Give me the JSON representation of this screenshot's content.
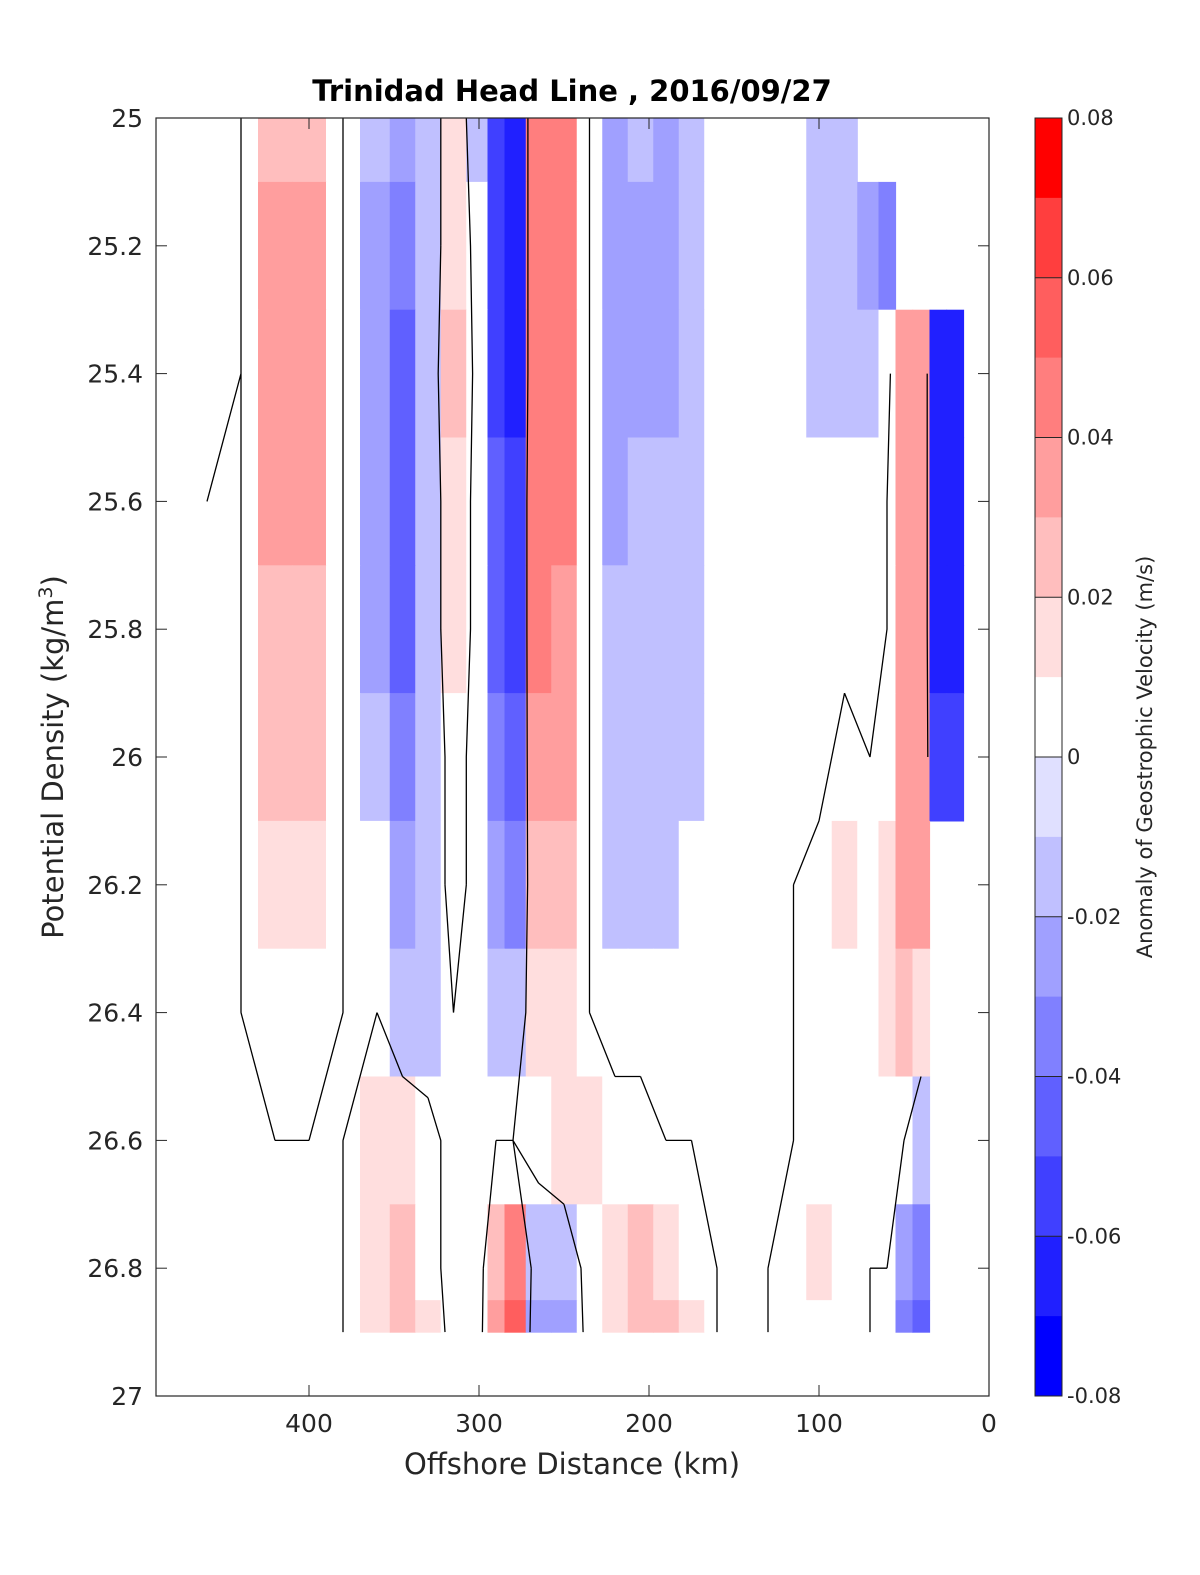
{
  "chart_data": {
    "type": "heatmap",
    "title": "Trinidad Head Line , 2016/09/27",
    "xlabel": "Offshore Distance (km)",
    "ylabel_main": "Potential Density (kg/m",
    "ylabel_sup": "3",
    "ylabel_close": ")",
    "xlim": [
      490,
      0
    ],
    "x_reversed": true,
    "ylim": [
      25,
      27
    ],
    "y_reversed": true,
    "x_ticks": [
      400,
      300,
      200,
      100,
      0
    ],
    "y_ticks": [
      25,
      25.2,
      25.4,
      25.6,
      25.8,
      26,
      26.2,
      26.4,
      26.6,
      26.8,
      27
    ],
    "colorbar": {
      "label": "Anomaly of Geostrophic Velocity (m/s)",
      "range": [
        -0.08,
        0.08
      ],
      "tick_values": [
        0.08,
        0.06,
        0.04,
        0.02,
        0,
        -0.02,
        -0.04,
        -0.06,
        -0.08
      ],
      "tick_labels": [
        "0.08",
        "0.06",
        "0.04",
        "0.02",
        "0",
        "-0.02",
        "-0.04",
        "-0.06",
        "-0.08"
      ],
      "levels": [
        -0.08,
        -0.07,
        -0.06,
        -0.05,
        -0.04,
        -0.03,
        -0.02,
        -0.01,
        0.01,
        0.02,
        0.03,
        0.04,
        0.05,
        0.06,
        0.07,
        0.08
      ],
      "colors": [
        "#0000ff",
        "#2020ff",
        "#4040ff",
        "#6060ff",
        "#8080ff",
        "#a0a0ff",
        "#c0c0ff",
        "#e0e0ff",
        "#ffffff",
        "#ffdede",
        "#ffbebe",
        "#ff9e9e",
        "#ff7e7e",
        "#ff5e5e",
        "#ff3e3e",
        "#ff0000"
      ]
    },
    "x_columns": [
      460,
      440,
      420,
      400,
      380,
      360,
      345,
      330,
      315,
      300,
      290,
      280,
      265,
      250,
      235,
      220,
      205,
      190,
      175,
      160,
      145,
      130,
      115,
      100,
      85,
      70,
      60,
      50,
      40,
      30,
      20
    ],
    "y_rows": [
      25.0,
      25.2,
      25.4,
      25.6,
      25.8,
      26.0,
      26.2,
      26.4,
      26.6,
      26.8,
      26.9
    ],
    "velocity_anomaly": [
      [
        0.01,
        0.0,
        0.03,
        0.03,
        0.0,
        -0.02,
        -0.03,
        -0.02,
        0.02,
        -0.02,
        -0.06,
        -0.07,
        0.05,
        0.05,
        0.0,
        -0.03,
        -0.02,
        -0.03,
        -0.02,
        0.0,
        0.0,
        0.0,
        0.0,
        -0.02,
        -0.02,
        null,
        null,
        null,
        null,
        null,
        null
      ],
      [
        0.01,
        0.0,
        0.04,
        0.04,
        0.0,
        -0.03,
        -0.04,
        -0.02,
        0.02,
        -0.01,
        -0.06,
        -0.07,
        0.05,
        0.05,
        0.0,
        -0.03,
        -0.03,
        -0.03,
        -0.02,
        0.0,
        0.0,
        0.0,
        0.0,
        -0.02,
        -0.02,
        -0.03,
        -0.04,
        null,
        null,
        null,
        null
      ],
      [
        0.01,
        0.0,
        0.04,
        0.04,
        0.0,
        -0.03,
        -0.05,
        -0.02,
        0.03,
        -0.01,
        -0.06,
        -0.07,
        0.05,
        0.05,
        0.0,
        -0.03,
        -0.03,
        -0.03,
        -0.02,
        0.0,
        0.0,
        0.0,
        -0.01,
        -0.02,
        -0.02,
        -0.02,
        -0.01,
        0.04,
        0.04,
        -0.07,
        -0.07
      ],
      [
        0.0,
        0.0,
        0.04,
        0.04,
        0.0,
        -0.03,
        -0.05,
        -0.02,
        0.02,
        -0.01,
        -0.05,
        -0.06,
        0.05,
        0.05,
        0.0,
        -0.03,
        -0.02,
        -0.02,
        -0.02,
        -0.01,
        0.0,
        0.0,
        -0.01,
        -0.01,
        -0.01,
        -0.01,
        0.0,
        0.04,
        0.04,
        -0.07,
        -0.07
      ],
      [
        0.0,
        0.0,
        0.03,
        0.03,
        0.0,
        -0.03,
        -0.05,
        -0.02,
        0.02,
        -0.01,
        -0.05,
        -0.06,
        0.05,
        0.04,
        0.0,
        -0.02,
        -0.02,
        -0.02,
        -0.02,
        -0.01,
        0.0,
        0.0,
        -0.01,
        -0.01,
        -0.01,
        0.0,
        0.0,
        0.04,
        0.04,
        -0.07,
        -0.07
      ],
      [
        0.0,
        0.0,
        0.03,
        0.03,
        0.0,
        -0.02,
        -0.04,
        -0.02,
        0.01,
        -0.01,
        -0.04,
        -0.05,
        0.04,
        0.04,
        0.0,
        -0.02,
        -0.02,
        -0.02,
        -0.02,
        -0.01,
        0.0,
        0.0,
        -0.01,
        -0.01,
        0.01,
        0.0,
        0.01,
        0.04,
        0.04,
        -0.06,
        -0.06
      ],
      [
        0.0,
        0.0,
        0.02,
        0.02,
        0.0,
        -0.01,
        -0.03,
        -0.02,
        0.01,
        -0.01,
        -0.03,
        -0.04,
        0.03,
        0.03,
        0.0,
        -0.02,
        -0.02,
        -0.02,
        -0.01,
        0.0,
        0.0,
        0.0,
        0.0,
        0.01,
        0.02,
        0.01,
        0.02,
        0.04,
        0.04,
        null,
        null
      ],
      [
        0.0,
        0.0,
        0.01,
        0.01,
        0.0,
        0.0,
        -0.02,
        -0.02,
        0.0,
        -0.01,
        -0.02,
        -0.02,
        0.02,
        0.02,
        0.0,
        -0.01,
        -0.01,
        -0.01,
        -0.01,
        0.0,
        0.0,
        0.0,
        0.0,
        0.01,
        0.01,
        0.01,
        0.02,
        0.03,
        0.02,
        null,
        null
      ],
      [
        -0.01,
        0.0,
        0.0,
        0.0,
        0.0,
        0.02,
        0.02,
        0.01,
        -0.01,
        -0.01,
        0.0,
        0.0,
        0.01,
        0.02,
        0.02,
        0.01,
        0.01,
        0.0,
        0.0,
        0.0,
        0.0,
        0.0,
        0.0,
        0.01,
        0.01,
        0.01,
        0.01,
        0.0,
        -0.02,
        null,
        null
      ],
      [
        0.0,
        0.0,
        0.0,
        0.0,
        0.0,
        0.02,
        0.03,
        0.01,
        -0.01,
        -0.01,
        0.03,
        0.05,
        -0.02,
        -0.02,
        0.01,
        0.02,
        0.03,
        0.02,
        0.01,
        0.0,
        0.0,
        0.0,
        0.01,
        0.02,
        0.01,
        0.0,
        0.0,
        -0.03,
        -0.04,
        null,
        null
      ],
      [
        0.0,
        0.0,
        0.0,
        -0.01,
        0.0,
        0.02,
        0.03,
        0.02,
        -0.01,
        -0.01,
        0.04,
        0.06,
        -0.03,
        -0.03,
        0.01,
        0.02,
        0.03,
        0.03,
        0.02,
        0.0,
        0.0,
        0.0,
        0.01,
        0.01,
        0.01,
        0.0,
        0.0,
        -0.04,
        -0.05,
        null,
        null
      ]
    ],
    "zero_contour_visible": true,
    "grid": false
  }
}
